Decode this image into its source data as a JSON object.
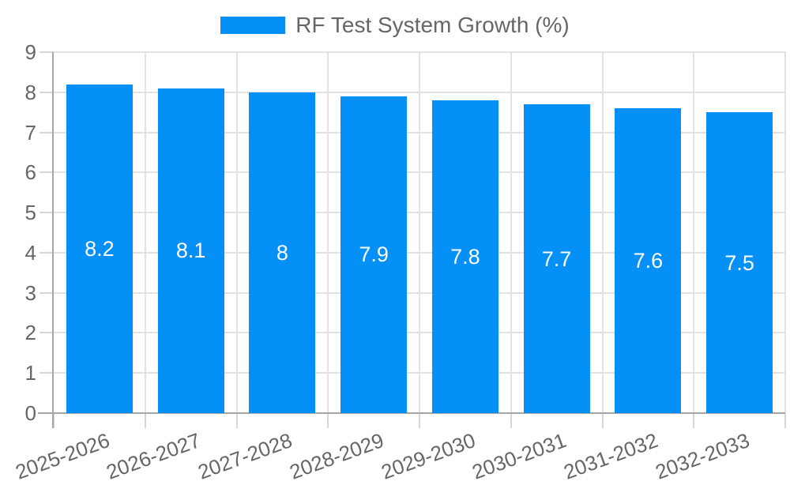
{
  "chart_data": {
    "type": "bar",
    "title": "RF Test System Growth (%)",
    "legend": {
      "position": "top",
      "label": "RF Test System Growth (%)"
    },
    "categories": [
      "2025-2026",
      "2026-2027",
      "2027-2028",
      "2028-2029",
      "2029-2030",
      "2030-2031",
      "2031-2032",
      "2032-2033"
    ],
    "values": [
      8.2,
      8.1,
      8,
      7.9,
      7.8,
      7.7,
      7.6,
      7.5
    ],
    "value_labels": [
      "8.2",
      "8.1",
      "8",
      "7.9",
      "7.8",
      "7.7",
      "7.6",
      "7.5"
    ],
    "xlabel": "",
    "ylabel": "",
    "ylim": [
      0,
      9
    ],
    "yticks": [
      0,
      1,
      2,
      3,
      4,
      5,
      6,
      7,
      8,
      9
    ],
    "grid": true,
    "x_tick_rotation_deg": -20,
    "colors": {
      "bar": "#0590f8",
      "bar_value_label": "#ffffff",
      "axis_text": "#666666",
      "gridline": "#e2e2e2",
      "tick_mark": "#d6d6d6",
      "axis_line": "#a6a6a6",
      "background": "#ffffff"
    }
  }
}
